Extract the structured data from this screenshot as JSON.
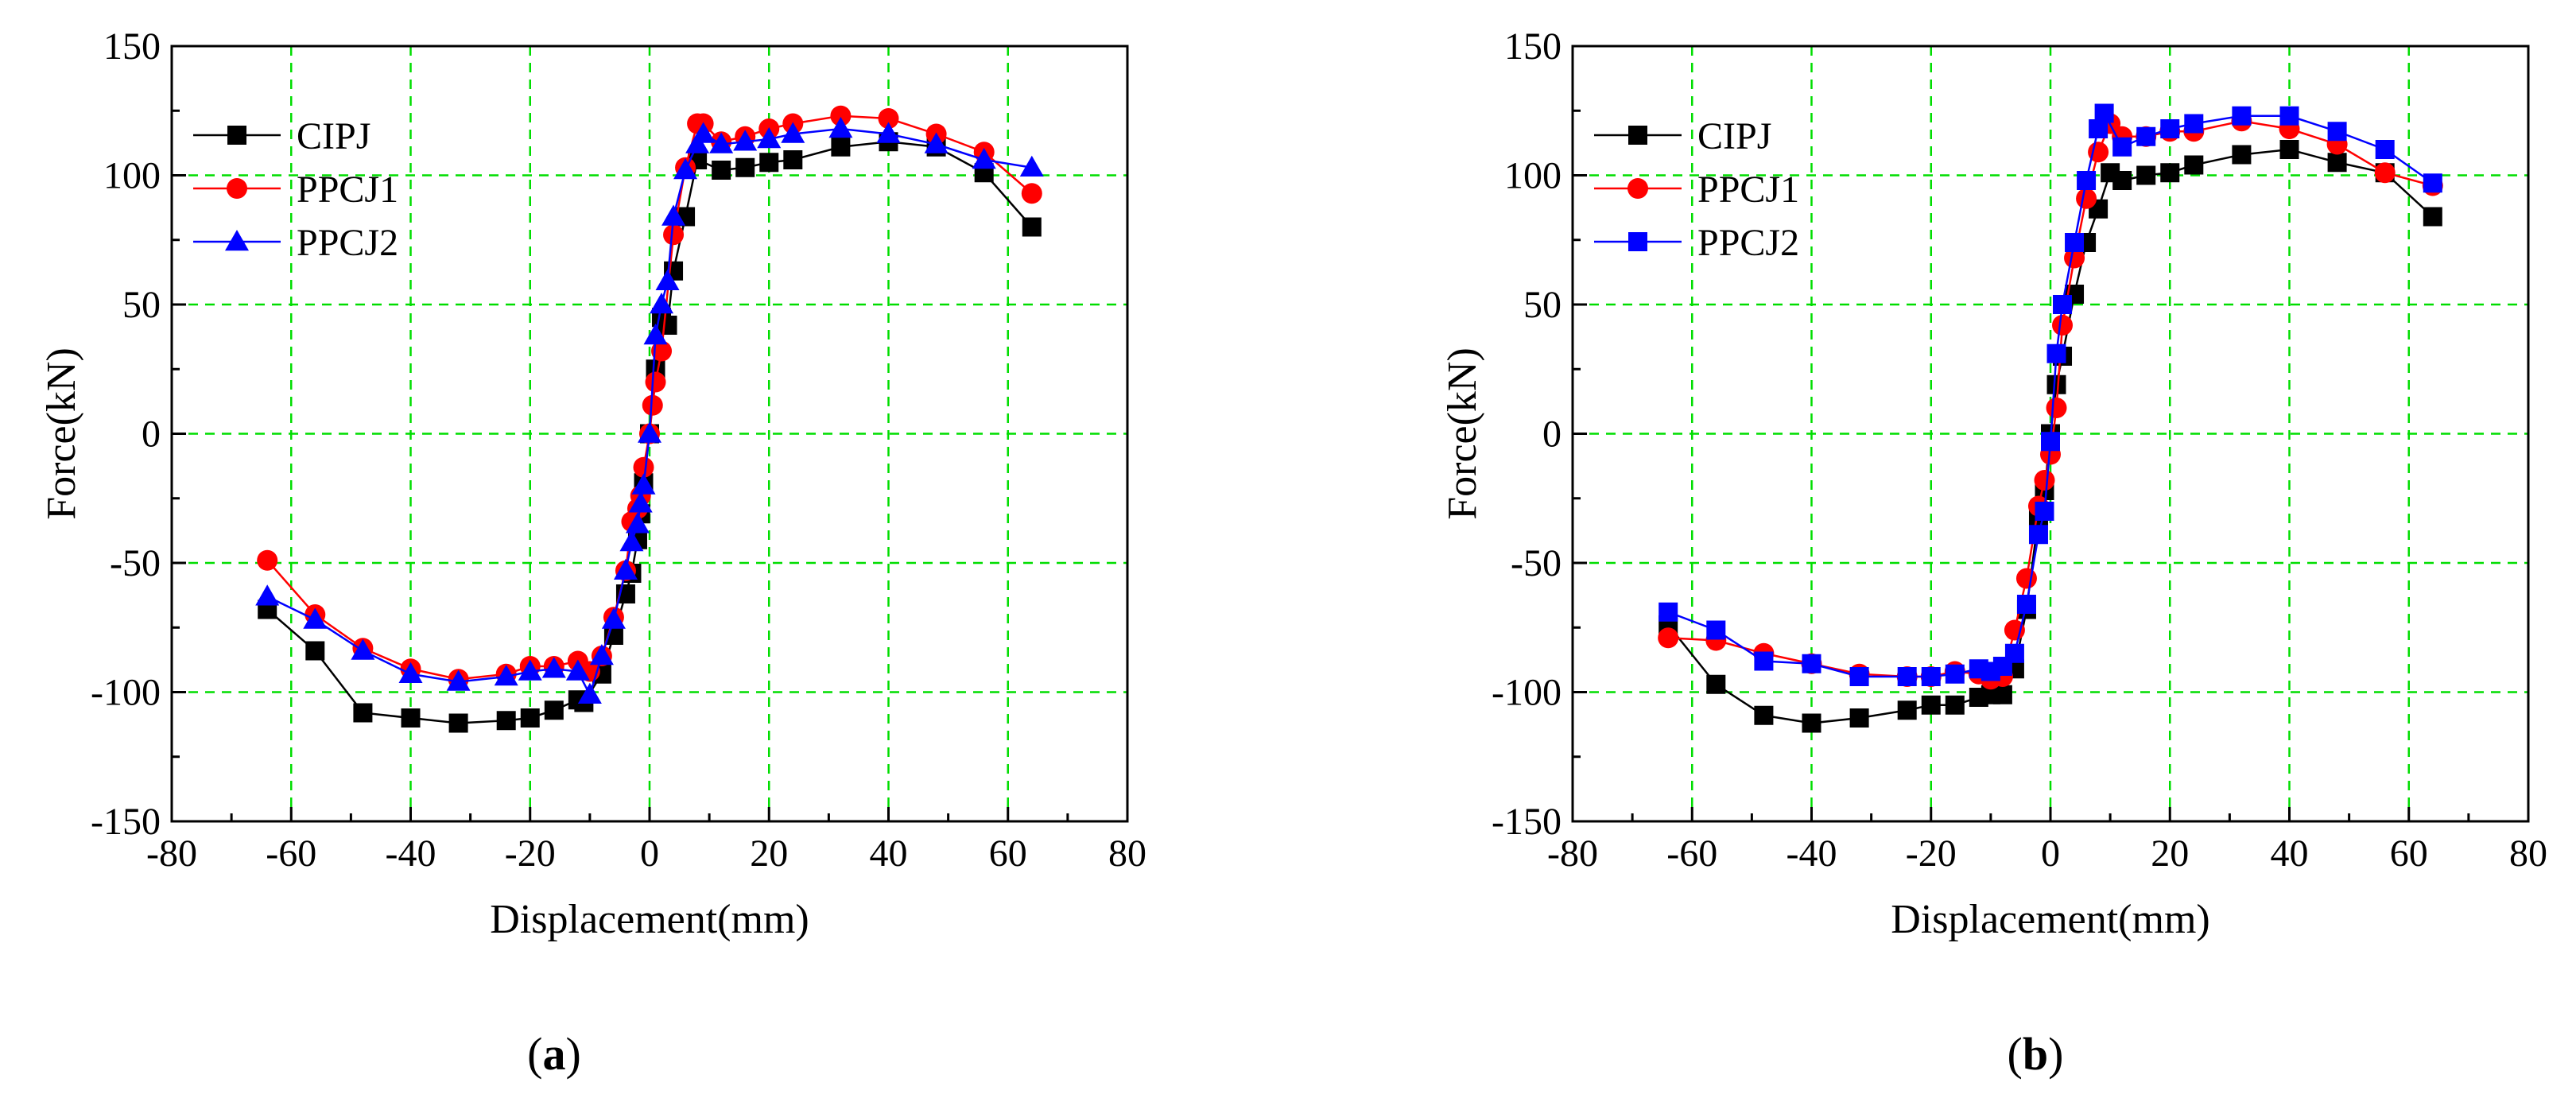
{
  "figure": {
    "panels": [
      {
        "id": "a",
        "label_open": "(",
        "label_letter": "a",
        "label_close": ")"
      },
      {
        "id": "b",
        "label_open": "(",
        "label_letter": "b",
        "label_close": ")"
      }
    ]
  },
  "chart_data": [
    {
      "type": "line",
      "panel": "a",
      "title": "",
      "xlabel": "Displacement(mm)",
      "ylabel": "Force(kN)",
      "xlim": [
        -80,
        80
      ],
      "ylim": [
        -150,
        150
      ],
      "xticks": [
        -80,
        -60,
        -40,
        -20,
        0,
        20,
        40,
        60,
        80
      ],
      "yticks": [
        -150,
        -100,
        -50,
        0,
        50,
        100,
        150
      ],
      "grid": true,
      "legend_position": "top-left",
      "series": [
        {
          "name": "CIPJ",
          "color": "#000000",
          "marker": "square",
          "x": [
            -64,
            -56,
            -48,
            -40,
            -32,
            -24,
            -20,
            -16,
            -12,
            -11,
            -8,
            -6,
            -4,
            -3,
            -2,
            -1.5,
            -1,
            0,
            1,
            2,
            3,
            4,
            6,
            8,
            12,
            16,
            20,
            24,
            32,
            40,
            48,
            56,
            64
          ],
          "y": [
            -68,
            -84,
            -108,
            -110,
            -112,
            -111,
            -110,
            -107,
            -103,
            -104,
            -93,
            -78,
            -62,
            -54,
            -41,
            -31,
            -19,
            0,
            25,
            45,
            42,
            63,
            84,
            106,
            102,
            103,
            105,
            106,
            111,
            113,
            111,
            101,
            80
          ]
        },
        {
          "name": "PPCJ1",
          "color": "#ff0000",
          "marker": "circle",
          "x": [
            -64,
            -56,
            -48,
            -40,
            -32,
            -24,
            -20,
            -16,
            -12,
            -10,
            -8,
            -6,
            -4,
            -3,
            -2,
            -1.5,
            -1,
            0,
            0.5,
            1,
            2,
            4,
            6,
            8,
            9,
            12,
            16,
            20,
            24,
            32,
            40,
            48,
            56,
            64
          ],
          "y": [
            -49,
            -70,
            -83,
            -91,
            -95,
            -93,
            -90,
            -90,
            -88,
            -92,
            -86,
            -71,
            -53,
            -34,
            -29,
            -24,
            -13,
            0,
            11,
            20,
            32,
            77,
            103,
            120,
            120,
            113,
            115,
            118,
            120,
            123,
            122,
            116,
            109,
            93
          ],
          "markersize_dots": 1
        },
        {
          "name": "PPCJ2",
          "color": "#0000ff",
          "marker": "triangle",
          "x": [
            -64,
            -56,
            -48,
            -40,
            -32,
            -24,
            -20,
            -16,
            -12,
            -10,
            -8,
            -6,
            -4,
            -3,
            -2,
            -1.5,
            -1,
            0,
            1,
            2,
            3,
            4,
            6,
            8,
            9,
            12,
            16,
            20,
            24,
            32,
            40,
            48,
            56,
            64
          ],
          "y": [
            -63,
            -72,
            -84,
            -93,
            -96,
            -94,
            -92,
            -91,
            -92,
            -101,
            -86,
            -72,
            -53,
            -42,
            -35,
            -27,
            -20,
            0,
            38,
            50,
            59,
            84,
            102,
            112,
            116,
            112,
            113,
            114,
            116,
            118,
            116,
            112,
            106,
            103
          ]
        }
      ]
    },
    {
      "type": "line",
      "panel": "b",
      "title": "",
      "xlabel": "Displacement(mm)",
      "ylabel": "Force(kN)",
      "xlim": [
        -80,
        80
      ],
      "ylim": [
        -150,
        150
      ],
      "xticks": [
        -80,
        -60,
        -40,
        -20,
        0,
        20,
        40,
        60,
        80
      ],
      "yticks": [
        -150,
        -100,
        -50,
        0,
        50,
        100,
        150
      ],
      "grid": true,
      "legend_position": "top-left",
      "series": [
        {
          "name": "CIPJ",
          "color": "#000000",
          "marker": "square",
          "x": [
            -64,
            -56,
            -48,
            -40,
            -32,
            -24,
            -20,
            -16,
            -12,
            -10,
            -8,
            -6,
            -4,
            -2,
            -1,
            0,
            1,
            2,
            4,
            6,
            8,
            10,
            12,
            16,
            20,
            24,
            32,
            40,
            48,
            56,
            64
          ],
          "y": [
            -74,
            -97,
            -109,
            -112,
            -110,
            -107,
            -105,
            -105,
            -102,
            -101,
            -101,
            -91,
            -68,
            -32,
            -22,
            0,
            19,
            30,
            54,
            74,
            87,
            101,
            98,
            100,
            101,
            104,
            108,
            110,
            105,
            101,
            84
          ]
        },
        {
          "name": "PPCJ1",
          "color": "#ff0000",
          "marker": "circle",
          "x": [
            -64,
            -56,
            -48,
            -40,
            -32,
            -24,
            -20,
            -16,
            -12,
            -10,
            -8,
            -6,
            -4,
            -2,
            -1,
            0,
            1,
            2,
            4,
            6,
            8,
            10,
            12,
            16,
            20,
            24,
            32,
            40,
            48,
            56,
            64
          ],
          "y": [
            -79,
            -80,
            -85,
            -89,
            -93,
            -94,
            -94,
            -92,
            -93,
            -95,
            -94,
            -76,
            -56,
            -28,
            -18,
            -8,
            10,
            42,
            68,
            91,
            109,
            120,
            115,
            115,
            117,
            117,
            121,
            118,
            112,
            101,
            96
          ]
        },
        {
          "name": "PPCJ2",
          "color": "#0000ff",
          "marker": "square",
          "x": [
            -64,
            -56,
            -48,
            -40,
            -32,
            -24,
            -20,
            -16,
            -12,
            -10,
            -8,
            -6,
            -4,
            -2,
            -1,
            0,
            1,
            2,
            4,
            6,
            8,
            9,
            12,
            16,
            20,
            24,
            32,
            40,
            48,
            56,
            64
          ],
          "y": [
            -69,
            -76,
            -88,
            -89,
            -94,
            -94,
            -94,
            -93,
            -91,
            -92,
            -90,
            -85,
            -66,
            -39,
            -30,
            -3,
            31,
            50,
            74,
            98,
            118,
            124,
            111,
            115,
            118,
            120,
            123,
            123,
            117,
            110,
            97
          ]
        }
      ]
    }
  ]
}
